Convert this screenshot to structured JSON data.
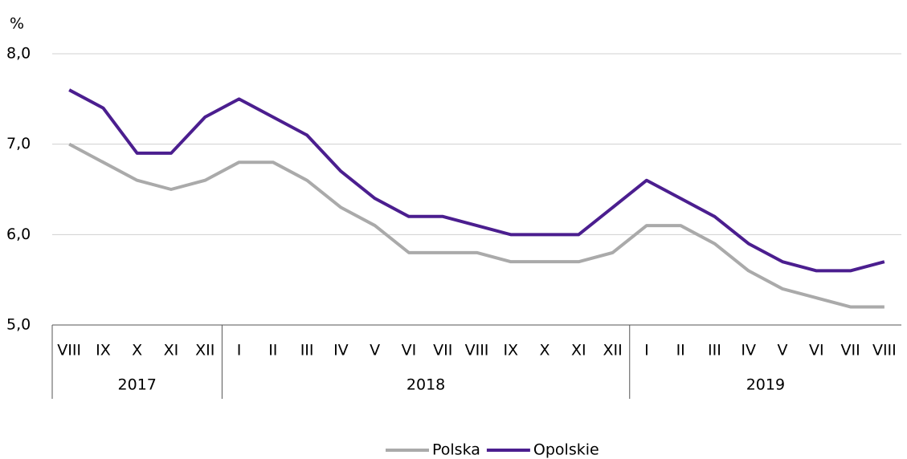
{
  "chart_data": {
    "type": "line",
    "y_unit": "%",
    "categories": [
      "VIII",
      "IX",
      "X",
      "XI",
      "XII",
      "I",
      "II",
      "III",
      "IV",
      "V",
      "VI",
      "VII",
      "VIII",
      "IX",
      "X",
      "XI",
      "XII",
      "I",
      "II",
      "III",
      "IV",
      "V",
      "VI",
      "VII",
      "VIII"
    ],
    "year_groups": [
      {
        "label": "2017",
        "count": 5
      },
      {
        "label": "2018",
        "count": 12
      },
      {
        "label": "2019",
        "count": 8
      }
    ],
    "series": [
      {
        "name": "Polska",
        "color": "#aaaaaa",
        "values": [
          7.0,
          6.8,
          6.6,
          6.5,
          6.6,
          6.8,
          6.8,
          6.6,
          6.3,
          6.1,
          5.8,
          5.8,
          5.8,
          5.7,
          5.7,
          5.7,
          5.8,
          6.1,
          6.1,
          5.9,
          5.6,
          5.4,
          5.3,
          5.2,
          5.2
        ]
      },
      {
        "name": "Opolskie",
        "color": "#4b1e8f",
        "values": [
          7.6,
          7.4,
          6.9,
          6.9,
          7.3,
          7.5,
          7.3,
          7.1,
          6.7,
          6.4,
          6.2,
          6.2,
          6.1,
          6.0,
          6.0,
          6.0,
          6.3,
          6.6,
          6.4,
          6.2,
          5.9,
          5.7,
          5.6,
          5.6,
          5.7
        ]
      }
    ],
    "ylim": [
      5,
      8
    ],
    "yticks": [
      {
        "value": 5,
        "label": "5,0"
      },
      {
        "value": 6,
        "label": "6,0"
      },
      {
        "value": 7,
        "label": "7,0"
      },
      {
        "value": 8,
        "label": "8,0"
      }
    ],
    "grid": true,
    "legend": "bottom"
  }
}
